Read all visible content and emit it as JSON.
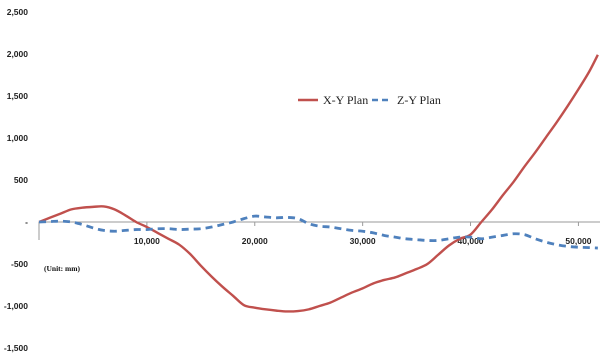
{
  "chart_data": {
    "type": "line",
    "title": "",
    "xlabel": "",
    "ylabel": "",
    "annotation": "(Unit: mm)",
    "xlim": [
      0,
      52000
    ],
    "ylim": [
      -1500,
      2500
    ],
    "x_ticks": [
      10000,
      20000,
      30000,
      40000,
      50000
    ],
    "x_tick_labels": [
      "10,000",
      "20,000",
      "30,000",
      "40,000",
      "50,000"
    ],
    "y_ticks": [
      2500,
      2000,
      1500,
      1000,
      500,
      0,
      -500,
      -1000,
      -1500
    ],
    "y_tick_labels": [
      "2,500",
      "2,000",
      "1,500",
      "1,000",
      "500",
      "-",
      "-500",
      "-1,000",
      "-1,500"
    ],
    "grid": false,
    "legend_position": "upper-center",
    "series": [
      {
        "name": "X-Y Plan",
        "color": "#c0504d",
        "style": "solid",
        "x": [
          0,
          1000,
          2000,
          3000,
          4000,
          5000,
          6000,
          7000,
          8000,
          9000,
          10000,
          11000,
          12000,
          13000,
          14000,
          15000,
          16000,
          17000,
          18000,
          19000,
          20000,
          21000,
          22000,
          23000,
          24000,
          25000,
          26000,
          27000,
          28000,
          29000,
          30000,
          31000,
          32000,
          33000,
          34000,
          35000,
          36000,
          37000,
          38000,
          39000,
          40000,
          41000,
          42000,
          43000,
          44000,
          45000,
          46000,
          47000,
          48000,
          49000,
          50000,
          51000,
          51800
        ],
        "y": [
          0,
          50,
          100,
          150,
          170,
          180,
          185,
          150,
          80,
          0,
          -60,
          -130,
          -200,
          -270,
          -380,
          -520,
          -650,
          -770,
          -880,
          -990,
          -1020,
          -1040,
          -1055,
          -1065,
          -1060,
          -1040,
          -1000,
          -960,
          -900,
          -840,
          -790,
          -730,
          -690,
          -660,
          -610,
          -560,
          -500,
          -390,
          -280,
          -200,
          -150,
          0,
          150,
          320,
          480,
          660,
          830,
          1010,
          1190,
          1380,
          1580,
          1790,
          1990
        ]
      },
      {
        "name": "Z-Y Plan",
        "color": "#4f81bd",
        "style": "dashed",
        "x": [
          0,
          1000,
          2000,
          3000,
          4000,
          5000,
          6000,
          7000,
          8000,
          9000,
          10000,
          11000,
          12000,
          13000,
          14000,
          15000,
          16000,
          17000,
          18000,
          19000,
          20000,
          21000,
          22000,
          23000,
          24000,
          25000,
          26000,
          27000,
          28000,
          29000,
          30000,
          31000,
          32000,
          33000,
          34000,
          35000,
          36000,
          37000,
          38000,
          39000,
          40000,
          41000,
          42000,
          43000,
          44000,
          45000,
          46000,
          47000,
          48000,
          49000,
          50000,
          51000,
          51800
        ],
        "y": [
          0,
          5,
          10,
          0,
          -30,
          -70,
          -100,
          -110,
          -100,
          -90,
          -90,
          -80,
          -80,
          -90,
          -85,
          -80,
          -60,
          -30,
          0,
          40,
          70,
          60,
          50,
          55,
          40,
          -20,
          -50,
          -60,
          -80,
          -100,
          -110,
          -130,
          -160,
          -180,
          -200,
          -210,
          -220,
          -220,
          -200,
          -180,
          -180,
          -200,
          -180,
          -160,
          -140,
          -150,
          -200,
          -240,
          -270,
          -290,
          -300,
          -305,
          -310
        ]
      }
    ]
  }
}
